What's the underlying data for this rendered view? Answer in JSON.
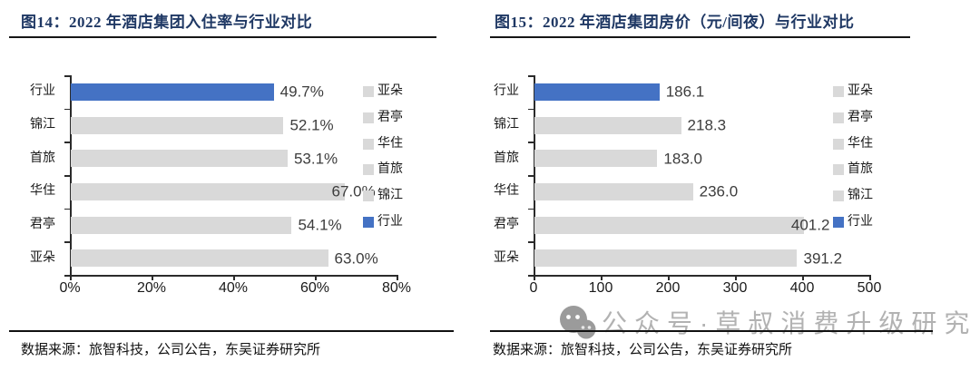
{
  "panels": [
    {
      "title": "图14：2022 年酒店集团入住率与行业对比",
      "source_label": "数据来源：旅智科技，公司公告，东吴证券研究所"
    },
    {
      "title": "图15：2022 年酒店集团房价（元/间夜）与行业对比",
      "source_label": "数据来源：旅智科技，公司公告，东吴证券研究所"
    }
  ],
  "watermark": {
    "icon": "wechat-icon",
    "text": "公众号·草叔消费升级研究"
  },
  "colors": {
    "industry_bar": "#4472c4",
    "company_bar": "#d9d9d9",
    "title_text": "#1f3864",
    "axis": "#2b2b2b",
    "watermark_text": "#b2b2b2",
    "watermark_icon": "#9b9b9b"
  },
  "chart_data": [
    {
      "type": "bar",
      "orientation": "horizontal",
      "title": "2022 年酒店集团入住率与行业对比",
      "categories": [
        "行业",
        "锦江",
        "首旅",
        "华住",
        "君亭",
        "亚朵"
      ],
      "values": [
        49.7,
        52.1,
        53.1,
        67.0,
        54.1,
        63.0
      ],
      "value_labels": [
        "49.7%",
        "52.1%",
        "53.1%",
        "67.0%",
        "54.1%",
        "63.0%"
      ],
      "xlim": [
        0,
        80
      ],
      "x_ticks": [
        "0%",
        "20%",
        "40%",
        "60%",
        "80%"
      ],
      "x_tick_values": [
        0,
        20,
        40,
        60,
        80
      ],
      "legend": [
        "亚朵",
        "君亭",
        "华住",
        "首旅",
        "锦江",
        "行业"
      ],
      "legend_position": "right",
      "grid": false,
      "highlight_category": "行业"
    },
    {
      "type": "bar",
      "orientation": "horizontal",
      "title": "2022 年酒店集团房价（元/间夜）与行业对比",
      "categories": [
        "行业",
        "锦江",
        "首旅",
        "华住",
        "君亭",
        "亚朵"
      ],
      "values": [
        186.1,
        218.3,
        183.0,
        236.0,
        401.2,
        391.2
      ],
      "value_labels": [
        "186.1",
        "218.3",
        "183.0",
        "236.0",
        "401.2",
        "391.2"
      ],
      "xlim": [
        0,
        500
      ],
      "x_ticks": [
        "0",
        "100",
        "200",
        "300",
        "400",
        "500"
      ],
      "x_tick_values": [
        0,
        100,
        200,
        300,
        400,
        500
      ],
      "legend": [
        "亚朵",
        "君亭",
        "华住",
        "首旅",
        "锦江",
        "行业"
      ],
      "legend_position": "right",
      "grid": false,
      "highlight_category": "行业"
    }
  ]
}
